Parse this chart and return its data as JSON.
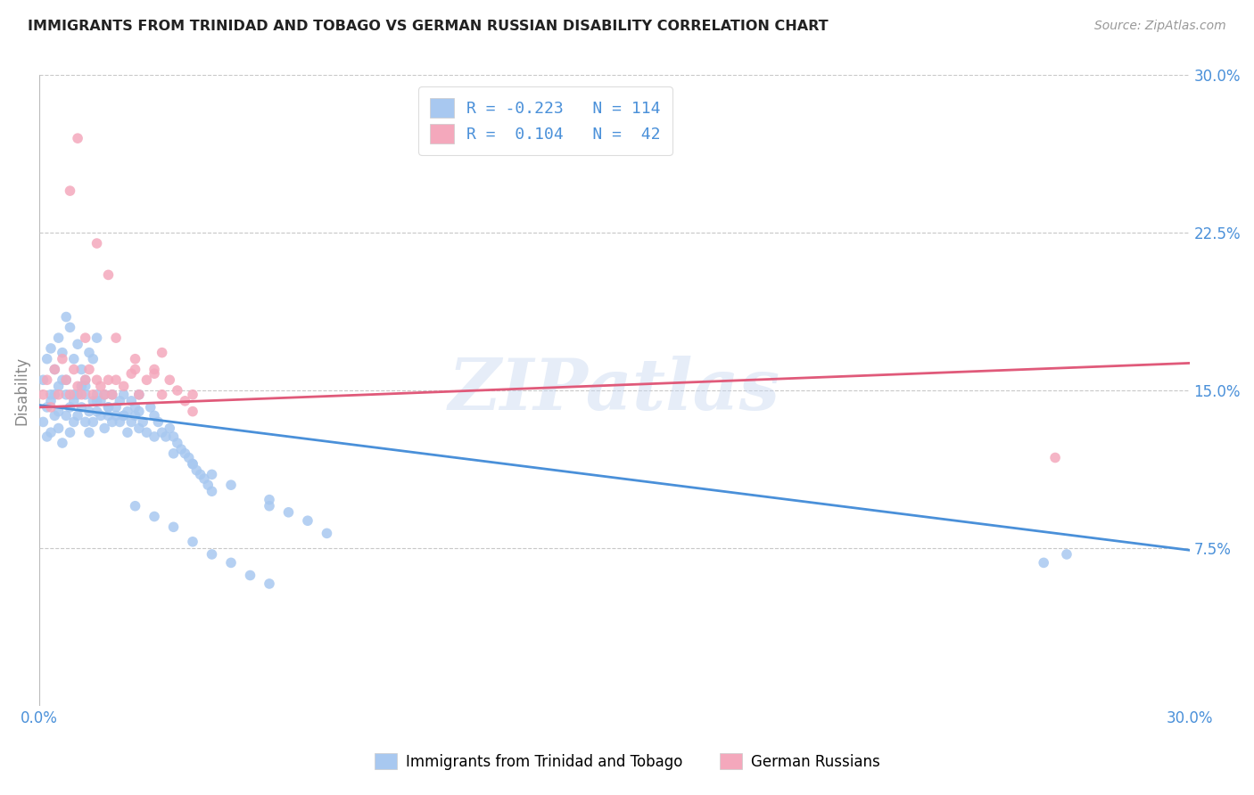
{
  "title": "IMMIGRANTS FROM TRINIDAD AND TOBAGO VS GERMAN RUSSIAN DISABILITY CORRELATION CHART",
  "source": "Source: ZipAtlas.com",
  "ylabel": "Disability",
  "xlim": [
    0.0,
    0.3
  ],
  "ylim": [
    0.0,
    0.3
  ],
  "yticks": [
    0.075,
    0.15,
    0.225,
    0.3
  ],
  "ytick_labels": [
    "7.5%",
    "15.0%",
    "22.5%",
    "30.0%"
  ],
  "xticks": [
    0.0,
    0.05,
    0.1,
    0.15,
    0.2,
    0.25,
    0.3
  ],
  "xtick_labels": [
    "0.0%",
    "",
    "",
    "",
    "",
    "",
    "30.0%"
  ],
  "blue_R": -0.223,
  "blue_N": 114,
  "pink_R": 0.104,
  "pink_N": 42,
  "blue_color": "#A8C8F0",
  "pink_color": "#F4A8BC",
  "blue_line_color": "#4A90D9",
  "pink_line_color": "#E05A7A",
  "legend_label_blue": "Immigrants from Trinidad and Tobago",
  "legend_label_pink": "German Russians",
  "watermark": "ZIPatlas",
  "background_color": "#FFFFFF",
  "grid_color": "#C8C8C8",
  "title_color": "#222222",
  "axis_label_color": "#4A90D9",
  "ylabel_color": "#888888",
  "blue_scatter_x": [
    0.001,
    0.002,
    0.002,
    0.003,
    0.003,
    0.004,
    0.004,
    0.005,
    0.005,
    0.006,
    0.006,
    0.007,
    0.007,
    0.008,
    0.008,
    0.009,
    0.009,
    0.01,
    0.01,
    0.011,
    0.011,
    0.012,
    0.012,
    0.013,
    0.013,
    0.014,
    0.014,
    0.015,
    0.015,
    0.016,
    0.016,
    0.017,
    0.017,
    0.018,
    0.018,
    0.019,
    0.019,
    0.02,
    0.02,
    0.021,
    0.021,
    0.022,
    0.022,
    0.023,
    0.023,
    0.024,
    0.024,
    0.025,
    0.025,
    0.026,
    0.026,
    0.027,
    0.028,
    0.029,
    0.03,
    0.031,
    0.032,
    0.033,
    0.034,
    0.035,
    0.036,
    0.037,
    0.038,
    0.039,
    0.04,
    0.041,
    0.042,
    0.043,
    0.044,
    0.045,
    0.001,
    0.002,
    0.003,
    0.004,
    0.005,
    0.006,
    0.007,
    0.008,
    0.009,
    0.01,
    0.011,
    0.012,
    0.013,
    0.014,
    0.015,
    0.003,
    0.005,
    0.007,
    0.009,
    0.012,
    0.015,
    0.018,
    0.022,
    0.026,
    0.03,
    0.035,
    0.04,
    0.045,
    0.05,
    0.06,
    0.06,
    0.065,
    0.07,
    0.075,
    0.262,
    0.268,
    0.025,
    0.03,
    0.035,
    0.04,
    0.045,
    0.05,
    0.055,
    0.06
  ],
  "blue_scatter_y": [
    0.135,
    0.128,
    0.142,
    0.13,
    0.145,
    0.138,
    0.148,
    0.14,
    0.132,
    0.155,
    0.125,
    0.148,
    0.138,
    0.142,
    0.13,
    0.145,
    0.135,
    0.148,
    0.138,
    0.152,
    0.142,
    0.135,
    0.148,
    0.14,
    0.13,
    0.145,
    0.135,
    0.148,
    0.14,
    0.138,
    0.145,
    0.132,
    0.148,
    0.138,
    0.142,
    0.135,
    0.148,
    0.138,
    0.142,
    0.145,
    0.135,
    0.148,
    0.138,
    0.14,
    0.13,
    0.145,
    0.135,
    0.142,
    0.138,
    0.148,
    0.14,
    0.135,
    0.13,
    0.142,
    0.138,
    0.135,
    0.13,
    0.128,
    0.132,
    0.128,
    0.125,
    0.122,
    0.12,
    0.118,
    0.115,
    0.112,
    0.11,
    0.108,
    0.105,
    0.102,
    0.155,
    0.165,
    0.17,
    0.16,
    0.175,
    0.168,
    0.185,
    0.18,
    0.165,
    0.172,
    0.16,
    0.155,
    0.168,
    0.165,
    0.175,
    0.148,
    0.152,
    0.155,
    0.148,
    0.152,
    0.145,
    0.142,
    0.138,
    0.132,
    0.128,
    0.12,
    0.115,
    0.11,
    0.105,
    0.095,
    0.098,
    0.092,
    0.088,
    0.082,
    0.068,
    0.072,
    0.095,
    0.09,
    0.085,
    0.078,
    0.072,
    0.068,
    0.062,
    0.058
  ],
  "pink_scatter_x": [
    0.001,
    0.002,
    0.003,
    0.004,
    0.005,
    0.006,
    0.007,
    0.008,
    0.009,
    0.01,
    0.011,
    0.012,
    0.013,
    0.014,
    0.015,
    0.016,
    0.017,
    0.018,
    0.019,
    0.02,
    0.022,
    0.024,
    0.026,
    0.028,
    0.03,
    0.032,
    0.034,
    0.036,
    0.038,
    0.04,
    0.008,
    0.012,
    0.018,
    0.025,
    0.032,
    0.265,
    0.01,
    0.015,
    0.02,
    0.025,
    0.03,
    0.04
  ],
  "pink_scatter_y": [
    0.148,
    0.155,
    0.142,
    0.16,
    0.148,
    0.165,
    0.155,
    0.148,
    0.16,
    0.152,
    0.148,
    0.155,
    0.16,
    0.148,
    0.155,
    0.152,
    0.148,
    0.155,
    0.148,
    0.155,
    0.152,
    0.158,
    0.148,
    0.155,
    0.16,
    0.148,
    0.155,
    0.15,
    0.145,
    0.148,
    0.245,
    0.175,
    0.205,
    0.16,
    0.168,
    0.118,
    0.27,
    0.22,
    0.175,
    0.165,
    0.158,
    0.14
  ]
}
